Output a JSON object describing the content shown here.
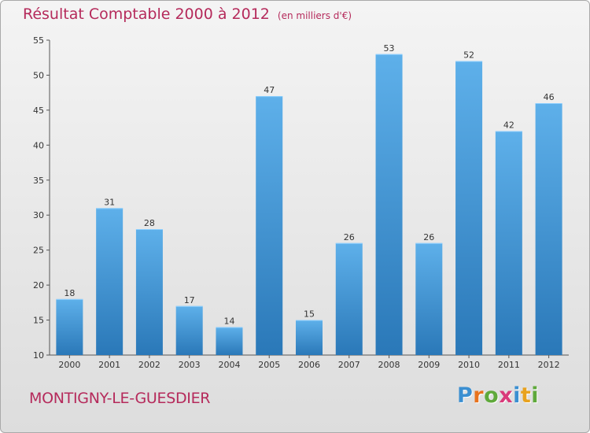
{
  "title": "Résultat Comptable 2000 à 2012",
  "subtitle": "(en milliers d'€)",
  "place": "MONTIGNY-LE-GUESDIER",
  "logo": {
    "letters": [
      "P",
      "r",
      "o",
      "x",
      "i",
      "t",
      "i"
    ],
    "colors": [
      "#3b8fd1",
      "#e8731e",
      "#5fa93b",
      "#d93a7a",
      "#3b8fd1",
      "#e8a21e",
      "#5fa93b"
    ]
  },
  "colors": {
    "bar_light": "#5eb0ea",
    "bar_dark": "#2a78b8",
    "title": "#b52a5b",
    "axis": "#555555"
  },
  "chart_data": {
    "type": "bar",
    "title": "Résultat Comptable 2000 à 2012",
    "subtitle": "(en milliers d'€)",
    "categories": [
      "2000",
      "2001",
      "2002",
      "2003",
      "2004",
      "2005",
      "2006",
      "2007",
      "2008",
      "2009",
      "2010",
      "2011",
      "2012"
    ],
    "values": [
      18,
      31,
      28,
      17,
      14,
      47,
      15,
      26,
      53,
      26,
      52,
      42,
      46
    ],
    "ylim": [
      10,
      55
    ],
    "yticks": [
      10,
      15,
      20,
      25,
      30,
      35,
      40,
      45,
      50,
      55
    ],
    "grid": false,
    "xlabel": "",
    "ylabel": ""
  }
}
